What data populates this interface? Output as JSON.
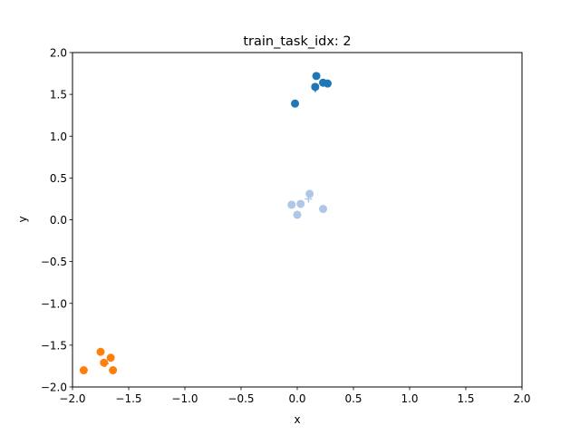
{
  "chart_data": {
    "type": "scatter",
    "title": "train_task_idx: 2",
    "xlabel": "x",
    "ylabel": "y",
    "xlim": [
      -2.0,
      2.0
    ],
    "ylim": [
      -2.0,
      2.0
    ],
    "xticks": [
      -2.0,
      -1.5,
      -1.0,
      -0.5,
      0.0,
      0.5,
      1.0,
      1.5,
      2.0
    ],
    "xtick_labels": [
      "−2.0",
      "−1.5",
      "−1.0",
      "−0.5",
      "0.0",
      "0.5",
      "1.0",
      "1.5",
      "2.0"
    ],
    "yticks": [
      -2.0,
      -1.5,
      -1.0,
      -0.5,
      0.0,
      0.5,
      1.0,
      1.5,
      2.0
    ],
    "ytick_labels": [
      "−2.0",
      "−1.5",
      "−1.0",
      "−0.5",
      "0.0",
      "0.5",
      "1.0",
      "1.5",
      "2.0"
    ],
    "grid": false,
    "series": [
      {
        "color": "#1f77b4",
        "points": [
          [
            0.17,
            1.72
          ],
          [
            0.23,
            1.64
          ],
          [
            0.27,
            1.63
          ],
          [
            0.16,
            1.59
          ],
          [
            -0.02,
            1.39
          ]
        ],
        "center": [
          0.16,
          1.57
        ]
      },
      {
        "color": "#aec7e8",
        "points": [
          [
            0.11,
            0.31
          ],
          [
            -0.05,
            0.18
          ],
          [
            0.03,
            0.19
          ],
          [
            0.23,
            0.13
          ],
          [
            0.0,
            0.06
          ]
        ],
        "center": [
          0.1,
          0.25
        ]
      },
      {
        "color": "#ff7f0e",
        "points": [
          [
            -1.75,
            -1.58
          ],
          [
            -1.66,
            -1.65
          ],
          [
            -1.72,
            -1.71
          ],
          [
            -1.9,
            -1.8
          ],
          [
            -1.64,
            -1.8
          ]
        ],
        "center": [
          -1.71,
          -1.72
        ]
      }
    ]
  }
}
